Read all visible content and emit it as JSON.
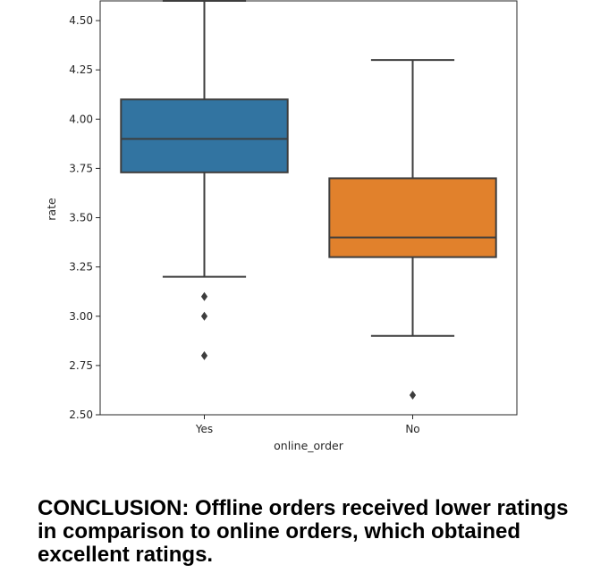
{
  "chart_data": {
    "type": "box",
    "xlabel": "online_order",
    "ylabel": "rate",
    "ylim": [
      2.5,
      4.6
    ],
    "yticks": [
      "2.50",
      "2.75",
      "3.00",
      "3.25",
      "3.50",
      "3.75",
      "4.00",
      "4.25",
      "4.50"
    ],
    "categories": [
      "Yes",
      "No"
    ],
    "boxes": [
      {
        "category": "Yes",
        "color": "#3274a1",
        "whisker_low": 3.2,
        "q1": 3.73,
        "median": 3.9,
        "q3": 4.1,
        "whisker_high": 4.6,
        "outliers": [
          3.1,
          3.0,
          2.8
        ]
      },
      {
        "category": "No",
        "color": "#e1812c",
        "whisker_low": 2.9,
        "q1": 3.3,
        "median": 3.4,
        "q3": 3.7,
        "whisker_high": 4.3,
        "outliers": [
          2.6
        ]
      }
    ],
    "grid": false,
    "legend": "none"
  },
  "conclusion": "CONCLUSION: Offline orders received lower ratings in comparison to online orders, which obtained excellent ratings."
}
